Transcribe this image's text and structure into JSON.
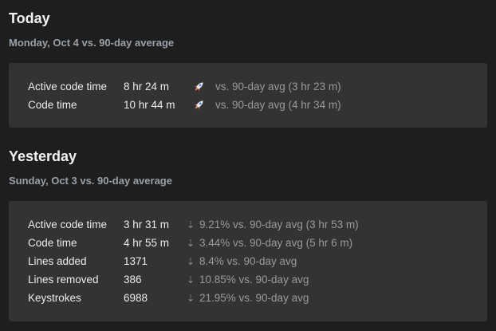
{
  "today": {
    "title": "Today",
    "subtitle": "Monday, Oct 4 vs. 90-day average",
    "rows": [
      {
        "label": "Active code time",
        "value": "8 hr 24 m",
        "icon": "rocket-icon",
        "compare": "vs. 90-day avg (3 hr 23 m)"
      },
      {
        "label": "Code time",
        "value": "10 hr 44 m",
        "icon": "rocket-icon",
        "compare": "vs. 90-day avg (4 hr 34 m)"
      }
    ]
  },
  "yesterday": {
    "title": "Yesterday",
    "subtitle": "Sunday, Oct 3 vs. 90-day average",
    "rows": [
      {
        "label": "Active code time",
        "value": "3 hr 31 m",
        "icon": "arrow-down-icon",
        "compare": "9.21% vs. 90-day avg (3 hr 53 m)"
      },
      {
        "label": "Code time",
        "value": "4 hr 55 m",
        "icon": "arrow-down-icon",
        "compare": "3.44% vs. 90-day avg (5 hr 6 m)"
      },
      {
        "label": "Lines added",
        "value": "1371",
        "icon": "arrow-down-icon",
        "compare": "8.4% vs. 90-day avg"
      },
      {
        "label": "Lines removed",
        "value": "386",
        "icon": "arrow-down-icon",
        "compare": "10.85% vs. 90-day avg"
      },
      {
        "label": "Keystrokes",
        "value": "6988",
        "icon": "arrow-down-icon",
        "compare": "21.95% vs. 90-day avg"
      }
    ]
  },
  "colors": {
    "background": "#1e1e1e",
    "card": "#333333",
    "muted_text": "#9a9a9a",
    "subtitle_text": "#9aa0a8"
  }
}
